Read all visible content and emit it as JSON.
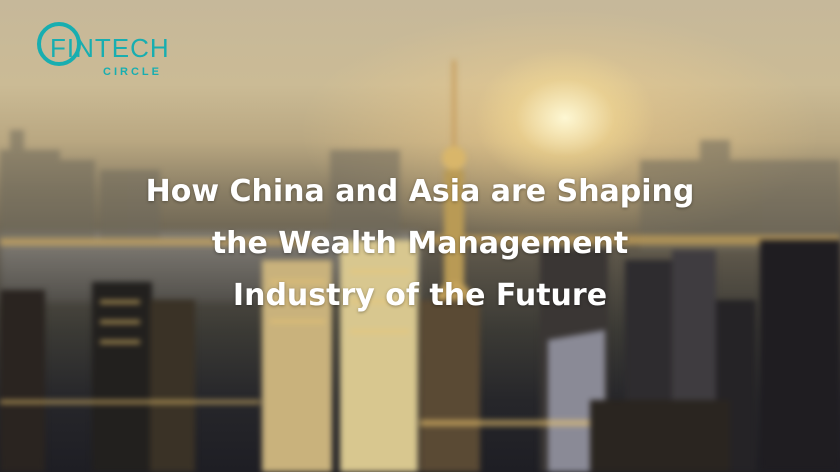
{
  "logo": {
    "main": "FINTECH",
    "sub": "CIRCLE",
    "color": "#18aeb0"
  },
  "headline": {
    "lines": [
      "How China and Asia are Shaping",
      "the Wealth Management",
      "Industry of the Future"
    ]
  },
  "photo": {
    "subject": "Shanghai skyline at sunset, blurred"
  }
}
